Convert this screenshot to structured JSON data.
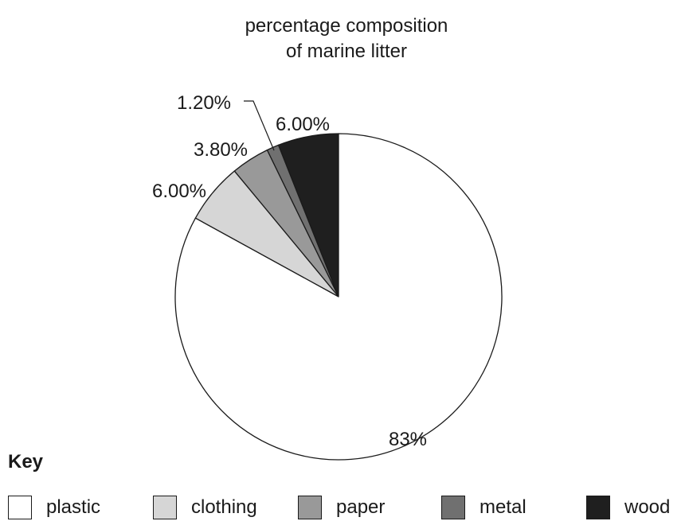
{
  "chart_data": {
    "type": "pie",
    "title_lines": [
      "percentage composition",
      "of marine litter"
    ],
    "slices": [
      {
        "label": "plastic",
        "value": 83.0,
        "display": "83%",
        "color": "#ffffff"
      },
      {
        "label": "clothing",
        "value": 6.0,
        "display": "6.00%",
        "color": "#d6d6d6"
      },
      {
        "label": "paper",
        "value": 3.8,
        "display": "3.80%",
        "color": "#999999"
      },
      {
        "label": "metal",
        "value": 1.2,
        "display": "1.20%",
        "color": "#707070"
      },
      {
        "label": "wood",
        "value": 6.0,
        "display": "6.00%",
        "color": "#1f1f1f"
      }
    ],
    "start": "12 o'clock",
    "direction": "counter-clockwise from wood"
  },
  "key": {
    "title": "Key",
    "items": [
      {
        "label": "plastic",
        "color": "#ffffff"
      },
      {
        "label": "clothing",
        "color": "#d6d6d6"
      },
      {
        "label": "paper",
        "color": "#999999"
      },
      {
        "label": "metal",
        "color": "#707070"
      },
      {
        "label": "wood",
        "color": "#1f1f1f"
      }
    ]
  }
}
